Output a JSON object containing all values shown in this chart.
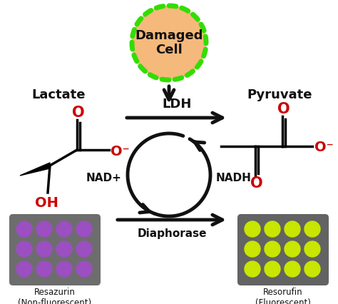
{
  "bg_color": "#ffffff",
  "cell_color": "#f5b97c",
  "cell_border_color": "#33dd00",
  "cell_text": "Damaged\nCell",
  "lactate_text": "Lactate",
  "pyruvate_text": "Pyruvate",
  "ldh_text": "LDH",
  "diaphorase_text": "Diaphorase",
  "nad_text": "NAD+",
  "nadh_text": "NADH",
  "resazurin_text": "Resazurin\n(Non-fluorescent)",
  "resorufin_text": "Resorufin\n(Fluorescent)",
  "plate_bg_resazurin": "#6d6d6d",
  "plate_bg_resorufin": "#636363",
  "dot_color_resazurin": "#9b4fc0",
  "dot_color_resorufin": "#c8e600",
  "arrow_color": "#111111",
  "text_color": "#111111",
  "red_color": "#cc0000",
  "figsize": [
    4.74,
    4.26
  ],
  "dpi": 100
}
